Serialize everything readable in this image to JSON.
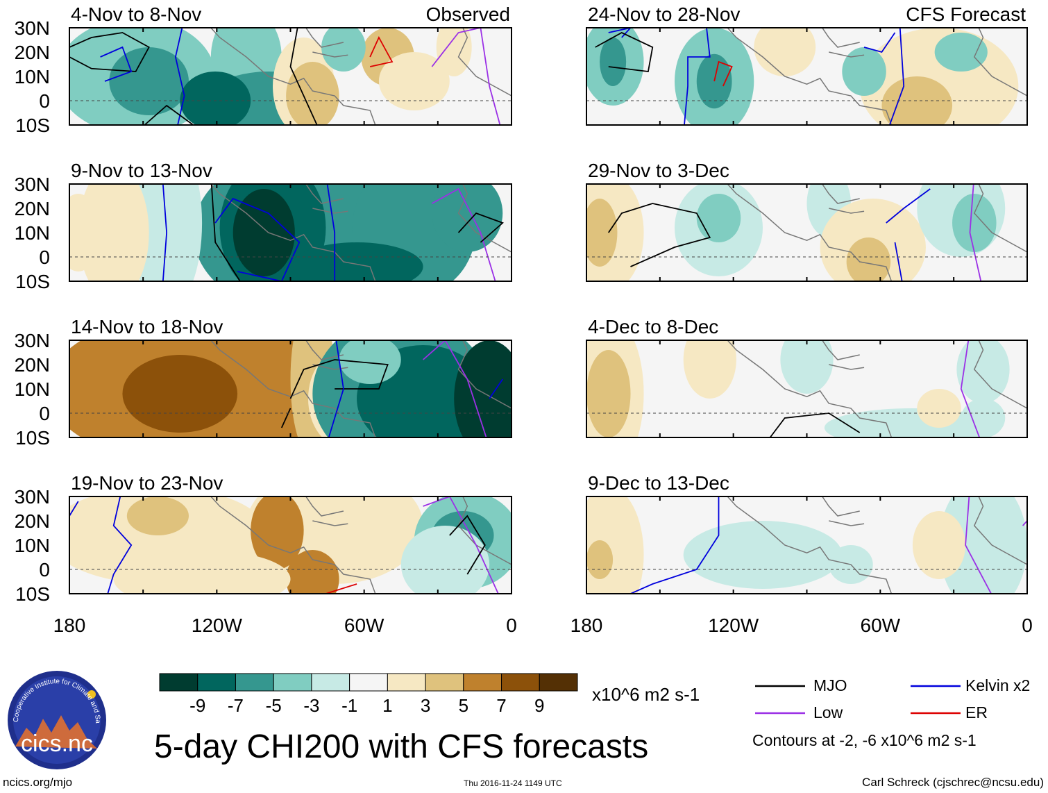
{
  "title": "5-day CHI200 with CFS forecasts",
  "units": "x10^6 m2 s-1",
  "site_url": "ncics.org/mjo",
  "timestamp": "Thu 2016-11-24 1149 UTC",
  "credit": "Carl Schreck (cjschrec@ncsu.edu)",
  "logo_text": "cics.nc",
  "logo_arc_text": "Cooperative Institute for Climate and Satellites",
  "column_labels": {
    "left": "Observed",
    "right": "CFS Forecast"
  },
  "lat_labels": [
    "30N",
    "20N",
    "10N",
    "0",
    "10S"
  ],
  "lon_labels": [
    "180",
    "120W",
    "60W",
    "0"
  ],
  "panels": [
    {
      "period": "4-Nov to 8-Nov",
      "type": "Observed"
    },
    {
      "period": "9-Nov to 13-Nov",
      "type": "Observed"
    },
    {
      "period": "14-Nov to 18-Nov",
      "type": "Observed"
    },
    {
      "period": "19-Nov to 23-Nov",
      "type": "Observed"
    },
    {
      "period": "24-Nov to 28-Nov",
      "type": "CFS Forecast"
    },
    {
      "period": "29-Nov to 3-Dec",
      "type": "CFS Forecast"
    },
    {
      "period": "4-Dec to 8-Dec",
      "type": "CFS Forecast"
    },
    {
      "period": "9-Dec to 13-Dec",
      "type": "CFS Forecast"
    }
  ],
  "colorbar": {
    "colors": [
      "#003c30",
      "#01665e",
      "#35978f",
      "#80cdc1",
      "#c7eae5",
      "#f5f5f5",
      "#f6e8c3",
      "#dfc27d",
      "#bf812d",
      "#8c510a",
      "#543005"
    ],
    "labels": [
      "-9",
      "-7",
      "-5",
      "-3",
      "-1",
      "1",
      "3",
      "5",
      "7",
      "9"
    ]
  },
  "legend": [
    {
      "label": "MJO",
      "color": "#000000"
    },
    {
      "label": "Kelvin x2",
      "color": "#0000dd"
    },
    {
      "label": "Low",
      "color": "#9b30e6"
    },
    {
      "label": "ER",
      "color": "#dd0000"
    }
  ],
  "contours_note": "Contours at -2, -6 x10^6 m2 s-1"
}
